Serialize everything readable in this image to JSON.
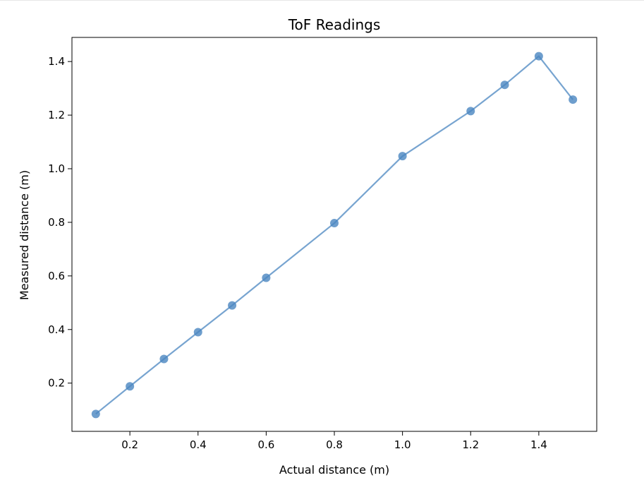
{
  "chart_data": {
    "type": "line",
    "title": "ToF Readings",
    "xlabel": "Actual distance (m)",
    "ylabel": "Measured distance (m)",
    "xlim": [
      0.03,
      1.57
    ],
    "ylim": [
      0.02,
      1.49
    ],
    "xticks": [
      0.2,
      0.4,
      0.6,
      0.8,
      1.0,
      1.2,
      1.4
    ],
    "xtick_labels": [
      "0.2",
      "0.4",
      "0.6",
      "0.8",
      "1.0",
      "1.2",
      "1.4"
    ],
    "yticks": [
      0.2,
      0.4,
      0.6,
      0.8,
      1.0,
      1.2,
      1.4
    ],
    "ytick_labels": [
      "0.2",
      "0.4",
      "0.6",
      "0.8",
      "1.0",
      "1.2",
      "1.4"
    ],
    "grid": false,
    "series": [
      {
        "color": "#4a86c0",
        "marker": "circle",
        "x": [
          0.1,
          0.2,
          0.3,
          0.4,
          0.5,
          0.6,
          0.8,
          1.0,
          1.2,
          1.3,
          1.4,
          1.5
        ],
        "y": [
          0.085,
          0.188,
          0.29,
          0.39,
          0.49,
          0.593,
          0.797,
          1.047,
          1.215,
          1.313,
          1.42,
          1.258
        ]
      }
    ]
  }
}
